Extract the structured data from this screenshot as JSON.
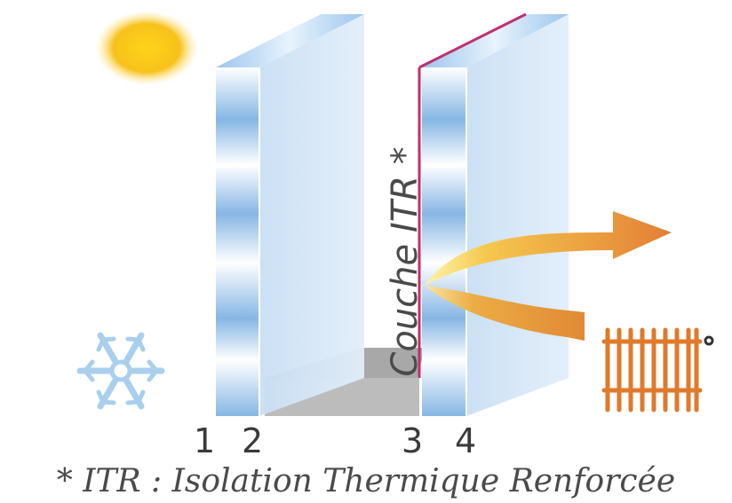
{
  "diagram": {
    "face_labels": [
      "1",
      "2",
      "3",
      "4"
    ],
    "coating_label": "Couche ITR *",
    "footnote": "* ITR : Isolation Thermique Renforcée"
  },
  "icons": {
    "sun": "sun-icon",
    "snowflake": "snowflake-icon",
    "radiator": "radiator-icon",
    "heat_arrow": "heat-reflection-arrow-icon"
  },
  "colors": {
    "glass": "#cfe3f6",
    "glass_edge": "#7fb3e3",
    "coating": "#c0306a",
    "spacer": "#b8b8b8",
    "sun": "#f6c21c",
    "snowflake": "#a9cfee",
    "heat_orange": "#e0832a",
    "radiator": "#e07a2a"
  }
}
